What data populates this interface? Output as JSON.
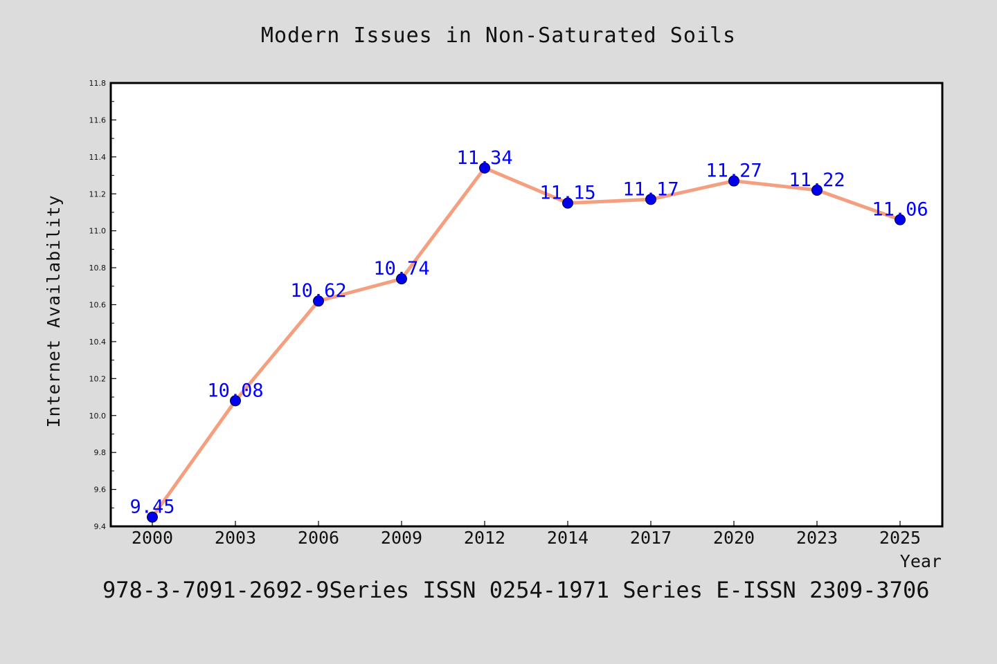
{
  "chart_data": {
    "type": "line",
    "title": "Modern Issues in Non-Saturated Soils",
    "xlabel": "Year",
    "ylabel": "Internet Availability",
    "categories": [
      "2000",
      "2003",
      "2006",
      "2009",
      "2012",
      "2014",
      "2017",
      "2020",
      "2023",
      "2025"
    ],
    "series": [
      {
        "values": [
          9.45,
          10.08,
          10.62,
          10.74,
          11.34,
          11.15,
          11.17,
          11.27,
          11.22,
          11.06
        ],
        "labels": [
          "9.45",
          "10.08",
          "10.62",
          "10.74",
          "11.34",
          "11.15",
          "11.17",
          "11.27",
          "11.22",
          "11.06"
        ],
        "line_color": "#f4a080",
        "marker_color": "#0000ee"
      }
    ],
    "ylim": [
      9.4,
      11.8
    ],
    "yticks": [
      "9.4",
      "9.6",
      "9.8",
      "10.0",
      "10.2",
      "10.4",
      "10.6",
      "10.8",
      "11.0",
      "11.2",
      "11.4",
      "11.6",
      "11.8"
    ],
    "grid": false,
    "label_color": "#0000ff",
    "footer": "978-3-7091-2692-9Series ISSN 0254-1971 Series E-ISSN 2309-3706"
  }
}
